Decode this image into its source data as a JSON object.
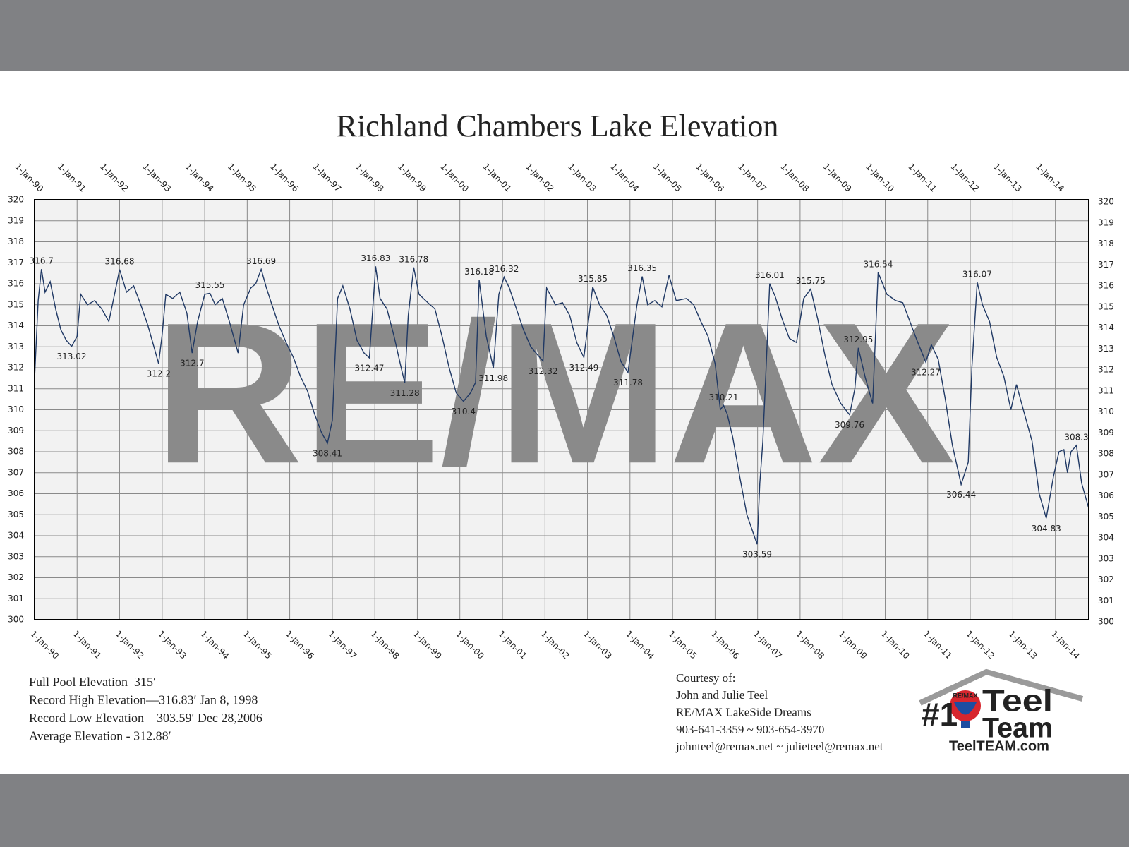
{
  "chart_data": {
    "type": "line",
    "title": "Richland Chambers Lake Elevation",
    "color": "#1f3864",
    "grid": true,
    "xlim": [
      "1990-01-01",
      "2014-10-15"
    ],
    "ylim": [
      300,
      320
    ],
    "yticks": [
      300,
      301,
      302,
      303,
      304,
      305,
      306,
      307,
      308,
      309,
      310,
      311,
      312,
      313,
      314,
      315,
      316,
      317,
      318,
      319,
      320
    ],
    "xticks": [
      {
        "value": "1990-01-01",
        "label": "1-Jan-90"
      },
      {
        "value": "1991-01-01",
        "label": "1-Jan-91"
      },
      {
        "value": "1992-01-01",
        "label": "1-Jan-92"
      },
      {
        "value": "1993-01-01",
        "label": "1-Jan-93"
      },
      {
        "value": "1994-01-01",
        "label": "1-Jan-94"
      },
      {
        "value": "1995-01-01",
        "label": "1-Jan-95"
      },
      {
        "value": "1996-01-01",
        "label": "1-Jan-96"
      },
      {
        "value": "1997-01-01",
        "label": "1-Jan-97"
      },
      {
        "value": "1998-01-01",
        "label": "1-Jan-98"
      },
      {
        "value": "1999-01-01",
        "label": "1-Jan-99"
      },
      {
        "value": "2000-01-01",
        "label": "1-Jan-00"
      },
      {
        "value": "2001-01-01",
        "label": "1-Jan-01"
      },
      {
        "value": "2002-01-01",
        "label": "1-Jan-02"
      },
      {
        "value": "2003-01-01",
        "label": "1-Jan-03"
      },
      {
        "value": "2004-01-01",
        "label": "1-Jan-04"
      },
      {
        "value": "2005-01-01",
        "label": "1-Jan-05"
      },
      {
        "value": "2006-01-01",
        "label": "1-Jan-06"
      },
      {
        "value": "2007-01-01",
        "label": "1-Jan-07"
      },
      {
        "value": "2008-01-01",
        "label": "1-Jan-08"
      },
      {
        "value": "2009-01-01",
        "label": "1-Jan-09"
      },
      {
        "value": "2010-01-01",
        "label": "1-Jan-10"
      },
      {
        "value": "2011-01-01",
        "label": "1-Jan-11"
      },
      {
        "value": "2012-01-01",
        "label": "1-Jan-12"
      },
      {
        "value": "2013-01-01",
        "label": "1-Jan-13"
      },
      {
        "value": "2014-01-01",
        "label": "1-Jan-14"
      }
    ],
    "x": [
      "1990-01-01",
      "1990-02-01",
      "1990-03-01",
      "1990-04-01",
      "1990-05-15",
      "1990-07-01",
      "1990-08-15",
      "1990-10-01",
      "1990-11-15",
      "1991-01-01",
      "1991-02-01",
      "1991-04-01",
      "1991-06-01",
      "1991-08-01",
      "1991-10-01",
      "1991-11-15",
      "1992-01-01",
      "1992-03-01",
      "1992-05-01",
      "1992-07-01",
      "1992-09-01",
      "1992-11-01",
      "1992-12-01",
      "1993-01-01",
      "1993-02-01",
      "1993-04-01",
      "1993-06-01",
      "1993-08-01",
      "1993-09-15",
      "1993-11-01",
      "1994-01-01",
      "1994-02-15",
      "1994-04-01",
      "1994-06-01",
      "1994-08-01",
      "1994-10-15",
      "1994-12-01",
      "1995-02-01",
      "1995-03-15",
      "1995-05-01",
      "1995-06-15",
      "1995-08-01",
      "1995-10-01",
      "1995-12-01",
      "1996-02-01",
      "1996-04-01",
      "1996-06-01",
      "1996-08-01",
      "1996-10-01",
      "1996-11-20",
      "1997-01-01",
      "1997-02-15",
      "1997-04-01",
      "1997-06-01",
      "1997-08-01",
      "1997-10-01",
      "1997-11-15",
      "1998-01-08",
      "1998-02-15",
      "1998-04-15",
      "1998-06-15",
      "1998-08-15",
      "1998-09-15",
      "1998-10-15",
      "1998-12-01",
      "1999-01-15",
      "1999-04-01",
      "1999-06-01",
      "1999-08-01",
      "1999-10-01",
      "1999-12-01",
      "2000-02-01",
      "2000-04-01",
      "2000-05-15",
      "2000-06-15",
      "2000-08-15",
      "2000-10-15",
      "2000-12-01",
      "2001-01-15",
      "2001-03-01",
      "2001-05-01",
      "2001-07-01",
      "2001-09-01",
      "2001-11-01",
      "2001-12-15",
      "2002-01-15",
      "2002-04-01",
      "2002-06-01",
      "2002-08-01",
      "2002-10-01",
      "2002-12-01",
      "2003-02-15",
      "2003-04-15",
      "2003-06-15",
      "2003-08-15",
      "2003-10-15",
      "2003-12-15",
      "2004-02-01",
      "2004-03-01",
      "2004-04-15",
      "2004-06-01",
      "2004-08-01",
      "2004-10-01",
      "2004-12-01",
      "2005-02-01",
      "2005-05-01",
      "2005-07-01",
      "2005-09-01",
      "2005-11-01",
      "2006-01-01",
      "2006-02-15",
      "2006-03-15",
      "2006-04-15",
      "2006-06-01",
      "2006-08-01",
      "2006-10-01",
      "2006-12-28",
      "2007-01-20",
      "2007-02-15",
      "2007-03-15",
      "2007-04-15",
      "2007-06-01",
      "2007-08-01",
      "2007-10-01",
      "2007-12-01",
      "2008-02-01",
      "2008-04-01",
      "2008-06-01",
      "2008-08-01",
      "2008-10-01",
      "2008-12-15",
      "2009-03-01",
      "2009-04-15",
      "2009-05-15",
      "2009-07-15",
      "2009-09-15",
      "2009-11-01",
      "2010-01-15",
      "2010-04-01",
      "2010-06-01",
      "2010-08-01",
      "2010-10-01",
      "2010-12-15",
      "2011-02-01",
      "2011-04-01",
      "2011-06-01",
      "2011-08-01",
      "2011-10-15",
      "2011-12-15",
      "2012-01-15",
      "2012-03-01",
      "2012-04-15",
      "2012-06-15",
      "2012-08-15",
      "2012-10-15",
      "2012-12-15",
      "2013-02-01",
      "2013-04-01",
      "2013-06-15",
      "2013-08-15",
      "2013-10-15",
      "2013-12-15",
      "2014-02-01",
      "2014-03-15",
      "2014-04-15",
      "2014-05-15",
      "2014-07-01",
      "2014-08-15",
      "2014-10-15"
    ],
    "values": [
      311.5,
      315.2,
      316.7,
      315.6,
      316.1,
      314.8,
      313.8,
      313.3,
      313.02,
      313.5,
      315.5,
      315.0,
      315.2,
      314.8,
      314.2,
      315.4,
      316.68,
      315.6,
      315.9,
      315.0,
      314.0,
      312.8,
      312.2,
      313.6,
      315.5,
      315.3,
      315.6,
      314.6,
      312.7,
      314.2,
      315.5,
      315.55,
      315.0,
      315.3,
      314.2,
      312.7,
      315.0,
      315.8,
      316.0,
      316.69,
      315.8,
      315.0,
      314.0,
      313.2,
      312.5,
      311.6,
      310.9,
      309.8,
      308.9,
      308.41,
      309.5,
      315.3,
      315.9,
      314.8,
      313.3,
      312.7,
      312.47,
      316.83,
      315.3,
      314.8,
      313.5,
      312.0,
      311.28,
      314.5,
      316.78,
      315.5,
      315.1,
      314.8,
      313.5,
      312.0,
      310.8,
      310.4,
      310.8,
      311.3,
      316.18,
      313.5,
      311.98,
      315.5,
      316.32,
      315.8,
      314.8,
      313.8,
      313.0,
      312.6,
      312.32,
      315.8,
      315.0,
      315.1,
      314.5,
      313.2,
      312.49,
      315.85,
      315.0,
      314.5,
      313.5,
      312.3,
      311.78,
      313.8,
      315.0,
      316.35,
      315.0,
      315.2,
      314.9,
      316.4,
      315.2,
      315.3,
      315.0,
      314.2,
      313.5,
      312.2,
      310.0,
      310.21,
      309.8,
      308.7,
      306.8,
      305.0,
      303.59,
      306.5,
      308.5,
      312.0,
      316.01,
      315.4,
      314.3,
      313.4,
      313.2,
      315.3,
      315.75,
      314.3,
      312.6,
      311.2,
      310.3,
      309.76,
      311.0,
      312.95,
      311.5,
      310.3,
      316.54,
      315.5,
      315.2,
      315.1,
      314.2,
      313.3,
      312.27,
      313.1,
      312.4,
      310.5,
      308.3,
      306.44,
      307.5,
      312.0,
      316.07,
      315.0,
      314.2,
      312.5,
      311.6,
      310.0,
      311.2,
      310.0,
      308.5,
      306.0,
      304.83,
      306.8,
      308.0,
      308.1,
      307.0,
      308.0,
      308.3,
      306.5,
      305.3
    ],
    "annotations": [
      {
        "x": "1990-03-01",
        "value": 316.7
      },
      {
        "x": "1990-11-15",
        "value": 313.02
      },
      {
        "x": "1992-01-01",
        "value": 316.68
      },
      {
        "x": "1992-12-01",
        "value": 312.2
      },
      {
        "x": "1993-09-15",
        "value": 312.7
      },
      {
        "x": "1994-02-15",
        "value": 315.55
      },
      {
        "x": "1995-05-01",
        "value": 316.69
      },
      {
        "x": "1996-11-20",
        "value": 308.41
      },
      {
        "x": "1997-11-15",
        "value": 312.47
      },
      {
        "x": "1998-01-08",
        "value": 316.83
      },
      {
        "x": "1998-09-15",
        "value": 311.28
      },
      {
        "x": "1998-12-01",
        "value": 316.78
      },
      {
        "x": "2000-02-01",
        "value": 310.4
      },
      {
        "x": "2000-06-15",
        "value": 316.18
      },
      {
        "x": "2000-10-15",
        "value": 311.98
      },
      {
        "x": "2001-01-15",
        "value": 316.32
      },
      {
        "x": "2001-12-15",
        "value": 312.32
      },
      {
        "x": "2002-12-01",
        "value": 312.49
      },
      {
        "x": "2003-02-15",
        "value": 315.85
      },
      {
        "x": "2003-12-15",
        "value": 311.78
      },
      {
        "x": "2004-04-15",
        "value": 316.35
      },
      {
        "x": "2006-03-15",
        "value": 310.21
      },
      {
        "x": "2006-12-28",
        "value": 303.59
      },
      {
        "x": "2007-04-15",
        "value": 316.01
      },
      {
        "x": "2008-04-01",
        "value": 315.75
      },
      {
        "x": "2009-03-01",
        "value": 309.76
      },
      {
        "x": "2009-05-15",
        "value": 312.95
      },
      {
        "x": "2009-11-01",
        "value": 316.54
      },
      {
        "x": "2010-12-15",
        "value": 312.27
      },
      {
        "x": "2011-10-15",
        "value": 306.44
      },
      {
        "x": "2012-03-01",
        "value": 316.07
      },
      {
        "x": "2013-10-15",
        "value": 304.83
      },
      {
        "x": "2014-07-01",
        "value": 308.3
      }
    ],
    "watermark": "RE/MAX"
  },
  "notes": [
    "Full Pool Elevation–315′",
    "Record High Elevation—316.83′  Jan 8, 1998",
    "Record Low Elevation—303.59′  Dec 28,2006",
    "Average Elevation  - 312.88′"
  ],
  "courtesy": [
    "Courtesy of:",
    "John and Julie Teel",
    "RE/MAX LakeSide Dreams",
    "903-641-3359 ~ 903-654-3970",
    "johnteel@remax.net ~ julieteel@remax.net"
  ],
  "logo": {
    "rank": "#1",
    "brand": "RE/MAX",
    "line1": "Teel",
    "line2": "Team",
    "url": "TeelTEAM.com"
  }
}
